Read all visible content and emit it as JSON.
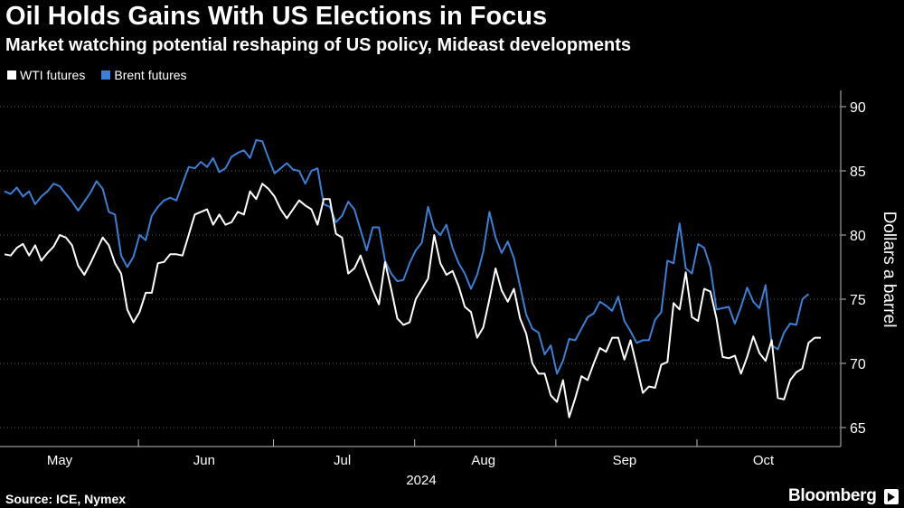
{
  "header": {
    "title": "Oil Holds Gains With US Elections in Focus",
    "subtitle": "Market watching potential reshaping of US policy, Mideast developments"
  },
  "footer": {
    "source": "Source: ICE, Nymex",
    "brand": "Bloomberg"
  },
  "colors": {
    "background": "#000000",
    "wti": "#ffffff",
    "brent": "#3b7fd6",
    "grid": "#555555",
    "text": "#ffffff"
  },
  "chart_data": {
    "type": "line",
    "title": "Oil Holds Gains With US Elections in Focus",
    "subtitle": "Market watching potential reshaping of US policy, Mideast developments",
    "ylabel": "Dollars a barrel",
    "xlabel": "2024",
    "ylim": [
      64,
      91
    ],
    "yticks": [
      65,
      70,
      75,
      80,
      85,
      90
    ],
    "grid": true,
    "legend_position": "top-left",
    "month_ticks": [
      {
        "label": "May",
        "x_index": 0
      },
      {
        "label": "Jun",
        "x_index": 23
      },
      {
        "label": "Jul",
        "x_index": 45
      },
      {
        "label": "Aug",
        "x_index": 68
      },
      {
        "label": "Sep",
        "x_index": 91
      },
      {
        "label": "Oct",
        "x_index": 114
      }
    ],
    "year_label": "2024",
    "series": [
      {
        "name": "WTI futures",
        "color": "#ffffff",
        "values": [
          78.5,
          78.4,
          79.0,
          79.3,
          78.4,
          79.2,
          78.0,
          78.6,
          79.1,
          80.0,
          79.8,
          79.2,
          77.6,
          76.9,
          77.8,
          78.8,
          79.8,
          79.2,
          77.8,
          77.0,
          74.2,
          73.2,
          74.0,
          75.5,
          75.5,
          77.8,
          77.9,
          78.5,
          78.5,
          78.4,
          80.0,
          81.6,
          81.8,
          82.0,
          80.8,
          81.6,
          80.8,
          81.0,
          81.8,
          81.6,
          83.4,
          82.8,
          84.0,
          83.6,
          83.0,
          82.0,
          81.3,
          82.0,
          82.7,
          82.3,
          82.0,
          80.8,
          82.8,
          82.8,
          80.1,
          79.8,
          77.0,
          77.4,
          78.4,
          77.0,
          75.7,
          74.6,
          77.9,
          75.8,
          73.5,
          73.0,
          73.2,
          75.0,
          75.8,
          76.6,
          80.0,
          77.8,
          76.9,
          77.2,
          76.0,
          74.4,
          74.0,
          72.0,
          72.8,
          75.0,
          77.4,
          75.7,
          74.8,
          75.8,
          73.5,
          72.3,
          70.0,
          69.2,
          69.2,
          67.5,
          67.0,
          68.7,
          65.8,
          67.3,
          69.0,
          68.7,
          70.0,
          71.2,
          70.9,
          72.0,
          72.0,
          70.3,
          71.8,
          69.8,
          67.7,
          68.2,
          68.1,
          69.9,
          70.1,
          74.7,
          74.2,
          77.1,
          73.6,
          73.3,
          75.8,
          75.6,
          73.5,
          70.5,
          70.4,
          70.6,
          69.2,
          70.5,
          72.1,
          70.8,
          70.2,
          71.8,
          67.3,
          67.2,
          68.7,
          69.3,
          69.6,
          71.6,
          72.0,
          72.0
        ]
      },
      {
        "name": "Brent futures",
        "color": "#3b7fd6",
        "values": [
          83.4,
          83.2,
          83.7,
          83.0,
          83.4,
          82.4,
          83.0,
          83.4,
          84.0,
          83.8,
          83.2,
          82.6,
          81.9,
          82.6,
          83.3,
          84.2,
          83.6,
          81.8,
          81.6,
          78.4,
          77.5,
          78.3,
          80.0,
          79.6,
          81.5,
          82.2,
          82.7,
          82.9,
          82.7,
          84.0,
          85.3,
          85.2,
          85.7,
          85.3,
          86.0,
          84.9,
          85.2,
          86.1,
          86.4,
          86.6,
          86.0,
          87.4,
          87.3,
          86.0,
          84.8,
          85.2,
          85.6,
          85.1,
          85.0,
          84.0,
          85.0,
          85.2,
          82.4,
          82.2,
          81.0,
          81.5,
          82.6,
          82.0,
          80.4,
          78.8,
          80.6,
          80.6,
          78.0,
          77.0,
          76.4,
          76.5,
          77.8,
          78.8,
          79.4,
          82.2,
          80.5,
          80.0,
          80.8,
          79.0,
          77.8,
          77.0,
          75.8,
          76.9,
          78.7,
          81.8,
          79.8,
          78.6,
          79.5,
          78.2,
          76.0,
          73.8,
          72.7,
          72.4,
          70.7,
          71.4,
          69.2,
          70.2,
          71.9,
          71.8,
          72.7,
          73.6,
          73.9,
          74.8,
          74.5,
          74.1,
          75.2,
          73.3,
          72.5,
          71.6,
          71.8,
          71.8,
          73.4,
          74.0,
          78.0,
          77.8,
          80.9,
          77.4,
          77.0,
          79.3,
          79.0,
          77.5,
          74.2,
          74.3,
          74.4,
          73.1,
          74.4,
          75.9,
          74.8,
          74.3,
          76.1,
          71.4,
          71.1,
          72.4,
          73.1,
          73.0,
          75.0,
          75.4
        ]
      }
    ]
  }
}
